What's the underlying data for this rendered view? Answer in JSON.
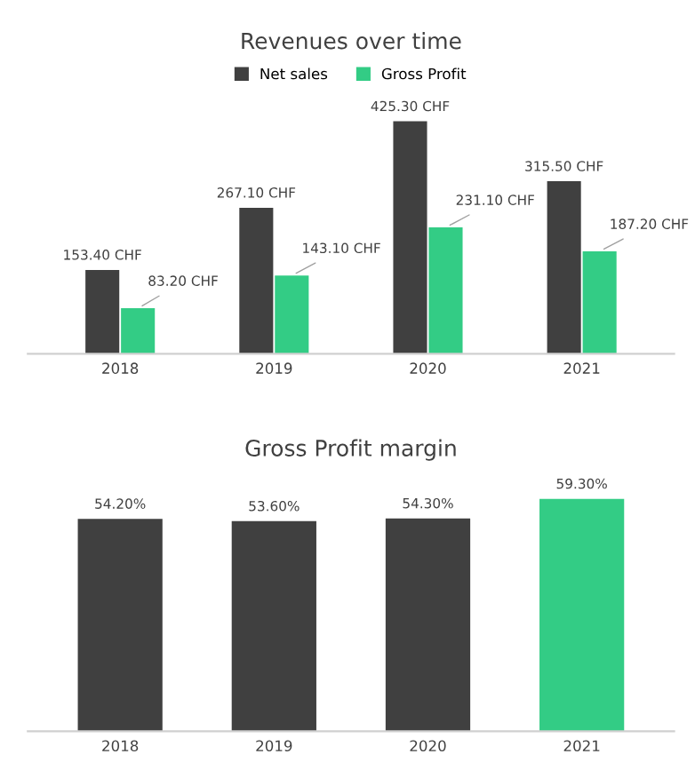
{
  "chart_data": [
    {
      "type": "bar",
      "title": "Revenues over time",
      "categories": [
        "2018",
        "2019",
        "2020",
        "2021"
      ],
      "tick_labels": "x",
      "legend": "top",
      "series": [
        {
          "name": "Net sales",
          "color": "#404040",
          "values": [
            153.4,
            267.1,
            425.3,
            315.5
          ],
          "value_labels": [
            "153.40 CHF",
            "267.10 CHF",
            "425.30 CHF",
            "315.50 CHF"
          ]
        },
        {
          "name": "Gross Profit",
          "color": "#33cc85",
          "values": [
            83.2,
            143.1,
            231.1,
            187.2
          ],
          "value_labels": [
            "83.20 CHF",
            "143.10 CHF",
            "231.10 CHF",
            "187.20 CHF"
          ]
        }
      ]
    },
    {
      "type": "bar",
      "title": "Gross Profit margin",
      "categories": [
        "2018",
        "2019",
        "2020",
        "2021"
      ],
      "tick_labels": "x",
      "values": [
        54.2,
        53.6,
        54.3,
        59.3
      ],
      "colors": [
        "#404040",
        "#404040",
        "#404040",
        "#33cc85"
      ],
      "value_labels": [
        "54.20%",
        "53.60%",
        "54.30%",
        "59.30%"
      ]
    }
  ]
}
